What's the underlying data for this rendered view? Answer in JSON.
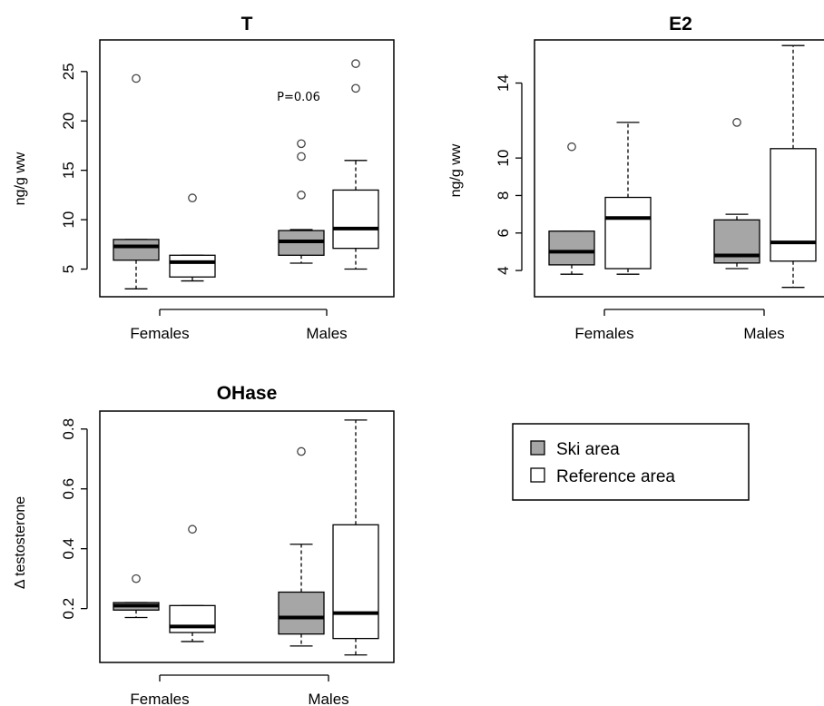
{
  "colors": {
    "ski": "#a6a6a6",
    "reference": "#ffffff",
    "ink": "#000000"
  },
  "legend": {
    "items": [
      {
        "label": "Ski area",
        "color": "#a6a6a6"
      },
      {
        "label": "Reference area",
        "color": "#ffffff"
      }
    ]
  },
  "chart_data": [
    {
      "type": "boxplot",
      "title": "T",
      "ylabel": "ng/g ww",
      "categories": [
        "Females",
        "Males"
      ],
      "ylim": [
        2.2,
        28.2
      ],
      "yticks": [
        5,
        10,
        15,
        20,
        25
      ],
      "annotation": {
        "text": "P=0.06",
        "category": "Males"
      },
      "boxes": [
        {
          "category": "Females",
          "series": "Ski area",
          "min": 3.0,
          "q1": 5.9,
          "median": 7.3,
          "q3": 8.0,
          "max": 8.0,
          "outliers": [
            24.3
          ]
        },
        {
          "category": "Females",
          "series": "Reference area",
          "min": 3.8,
          "q1": 4.2,
          "median": 5.7,
          "q3": 6.4,
          "max": 6.4,
          "outliers": [
            12.2
          ]
        },
        {
          "category": "Males",
          "series": "Ski area",
          "min": 5.6,
          "q1": 6.4,
          "median": 7.8,
          "q3": 8.9,
          "max": 9.0,
          "outliers": [
            12.5,
            16.4,
            17.7
          ]
        },
        {
          "category": "Males",
          "series": "Reference area",
          "min": 5.0,
          "q1": 7.1,
          "median": 9.1,
          "q3": 13.0,
          "max": 16.0,
          "outliers": [
            23.3,
            25.8
          ]
        }
      ]
    },
    {
      "type": "boxplot",
      "title": "E2",
      "ylabel": "ng/g ww",
      "categories": [
        "Females",
        "Males"
      ],
      "ylim": [
        2.6,
        16.3
      ],
      "yticks": [
        4,
        6,
        8,
        10,
        14
      ],
      "boxes": [
        {
          "category": "Females",
          "series": "Ski area",
          "min": 3.8,
          "q1": 4.3,
          "median": 5.0,
          "q3": 6.1,
          "max": 6.1,
          "outliers": [
            10.6
          ]
        },
        {
          "category": "Females",
          "series": "Reference area",
          "min": 3.8,
          "q1": 4.1,
          "median": 6.8,
          "q3": 7.9,
          "max": 11.9,
          "outliers": []
        },
        {
          "category": "Males",
          "series": "Ski area",
          "min": 4.1,
          "q1": 4.4,
          "median": 4.8,
          "q3": 6.7,
          "max": 7.0,
          "outliers": [
            11.9
          ]
        },
        {
          "category": "Males",
          "series": "Reference area",
          "min": 3.1,
          "q1": 4.5,
          "median": 5.5,
          "q3": 10.5,
          "max": 16.0,
          "outliers": []
        }
      ]
    },
    {
      "type": "boxplot",
      "title": "OHase",
      "ylabel": "Δ testosterone",
      "categories": [
        "Females",
        "Males"
      ],
      "ylim": [
        0.02,
        0.86
      ],
      "yticks": [
        0.2,
        0.4,
        0.6,
        0.8
      ],
      "boxes": [
        {
          "category": "Females",
          "series": "Ski area",
          "min": 0.17,
          "q1": 0.195,
          "median": 0.21,
          "q3": 0.22,
          "max": 0.22,
          "outliers": [
            0.3
          ]
        },
        {
          "category": "Females",
          "series": "Reference area",
          "min": 0.09,
          "q1": 0.12,
          "median": 0.14,
          "q3": 0.21,
          "max": 0.21,
          "outliers": [
            0.465
          ]
        },
        {
          "category": "Males",
          "series": "Ski area",
          "min": 0.075,
          "q1": 0.115,
          "median": 0.17,
          "q3": 0.255,
          "max": 0.415,
          "outliers": [
            0.725
          ]
        },
        {
          "category": "Males",
          "series": "Reference area",
          "min": 0.045,
          "q1": 0.1,
          "median": 0.185,
          "q3": 0.48,
          "max": 0.83,
          "outliers": []
        }
      ]
    }
  ]
}
